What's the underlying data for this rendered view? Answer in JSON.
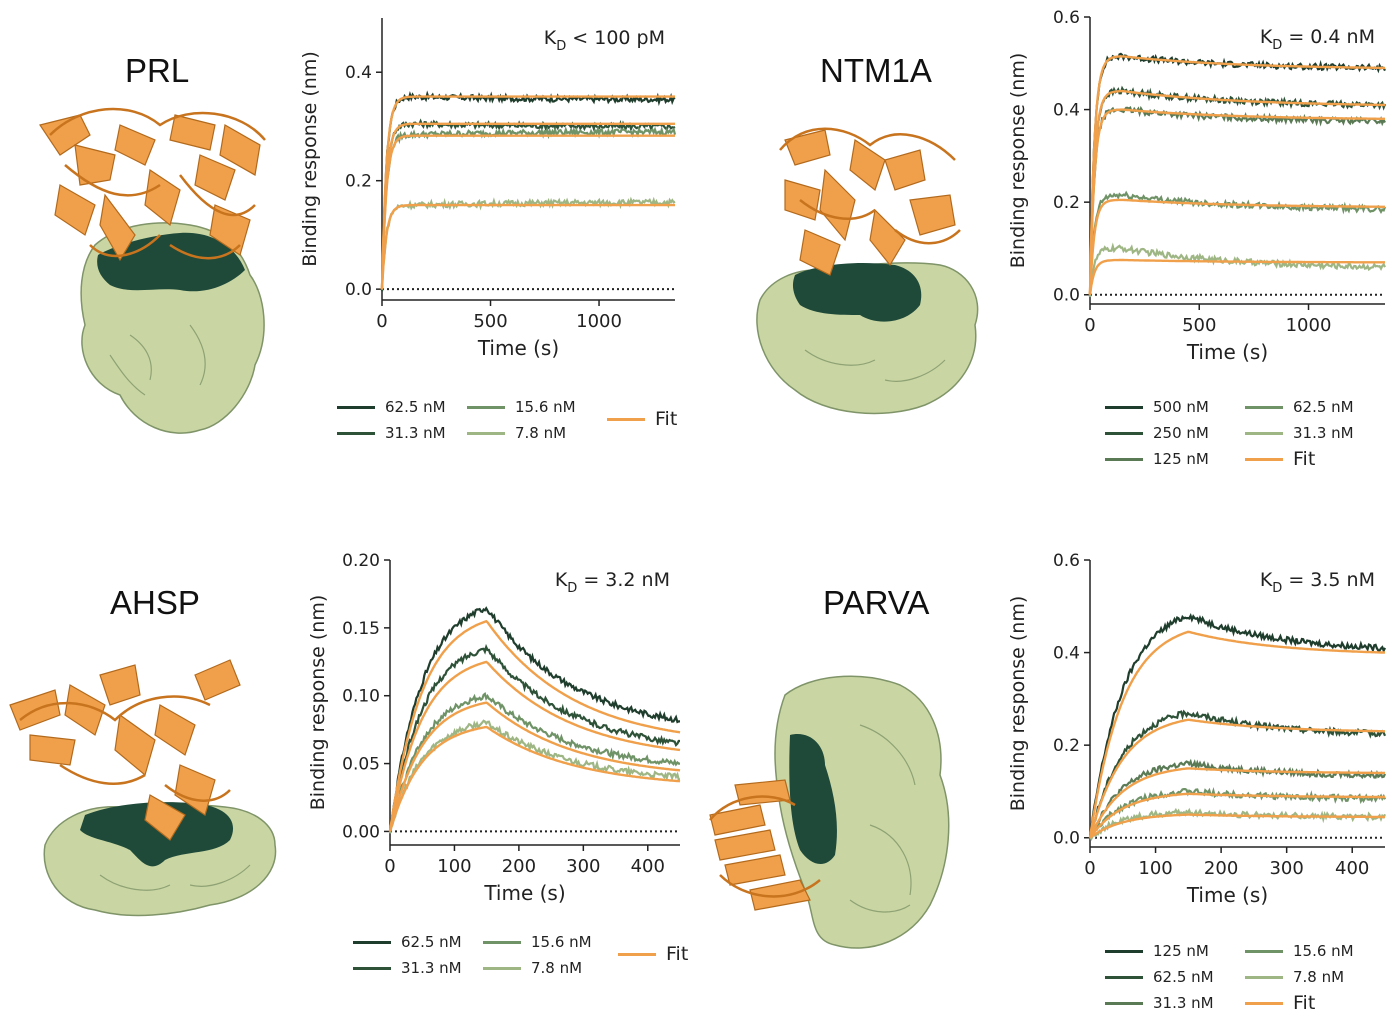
{
  "colors": {
    "c1": "#1f3d2c",
    "c2": "#2e5238",
    "c3": "#5a7a55",
    "c4": "#6f9367",
    "c5": "#9db684",
    "fit": "#f0a04b",
    "protein_green": "#c9d6a3",
    "epitope_dark": "#1f4a3a",
    "nanobody_orange": "#f0a04b"
  },
  "panels": [
    {
      "protein": "PRL",
      "kd_main": "K",
      "kd_sub": "D",
      "kd_rest": " < 100 pM",
      "legend": [
        "62.5 nM",
        "31.3 nM",
        "15.6 nM",
        "7.8 nM",
        "Fit"
      ]
    },
    {
      "protein": "NTM1A",
      "kd_main": "K",
      "kd_sub": "D",
      "kd_rest": " = 0.4 nM",
      "legend": [
        "500 nM",
        "250 nM",
        "125 nM",
        "62.5 nM",
        "31.3 nM",
        "Fit"
      ]
    },
    {
      "protein": "AHSP",
      "kd_main": "K",
      "kd_sub": "D",
      "kd_rest": " = 3.2 nM",
      "legend": [
        "62.5 nM",
        "31.3 nM",
        "15.6 nM",
        "7.8 nM",
        "Fit"
      ]
    },
    {
      "protein": "PARVA",
      "kd_main": "K",
      "kd_sub": "D",
      "kd_rest": " = 3.5 nM",
      "legend": [
        "125 nM",
        "62.5 nM",
        "31.3 nM",
        "15.6 nM",
        "7.8 nM",
        "Fit"
      ]
    }
  ],
  "chart_data": [
    {
      "type": "line",
      "title": "",
      "xlabel": "Time (s)",
      "ylabel": "Binding response (nm)",
      "xlim": [
        0,
        1350
      ],
      "ylim": [
        -0.02,
        0.5
      ],
      "xticks": [
        "0",
        "500",
        "1000"
      ],
      "xtick_values": [
        0,
        500,
        1000
      ],
      "yticks": [
        "0.0",
        "0.2",
        "0.4"
      ],
      "ytick_values": [
        0,
        0.2,
        0.4
      ],
      "annotation": "K_D < 100 pM",
      "association_end": 150,
      "series": [
        {
          "name": "62.5 nM",
          "plateau": 0.355,
          "end": 0.35,
          "color": "#1f3d2c"
        },
        {
          "name": "31.3 nM",
          "plateau": 0.305,
          "end": 0.3,
          "color": "#2e5238"
        },
        {
          "name": "15.6 nM",
          "plateau": 0.285,
          "end": 0.29,
          "color": "#6f9367"
        },
        {
          "name": "7.8 nM",
          "plateau": 0.155,
          "end": 0.16,
          "color": "#9db684"
        }
      ],
      "fit_series": [
        {
          "plateau": 0.355,
          "end": 0.355
        },
        {
          "plateau": 0.305,
          "end": 0.305
        },
        {
          "plateau": 0.283,
          "end": 0.283
        },
        {
          "plateau": 0.155,
          "end": 0.155
        }
      ]
    },
    {
      "type": "line",
      "title": "",
      "xlabel": "Time (s)",
      "ylabel": "Binding response (nm)",
      "xlim": [
        0,
        1350
      ],
      "ylim": [
        -0.02,
        0.6
      ],
      "xticks": [
        "0",
        "500",
        "1000"
      ],
      "xtick_values": [
        0,
        500,
        1000
      ],
      "yticks": [
        "0.0",
        "0.2",
        "0.4",
        "0.6"
      ],
      "ytick_values": [
        0,
        0.2,
        0.4,
        0.6
      ],
      "annotation": "K_D = 0.4 nM",
      "association_end": 150,
      "series": [
        {
          "name": "500 nM",
          "plateau": 0.515,
          "end": 0.49,
          "color": "#1f3d2c"
        },
        {
          "name": "250 nM",
          "plateau": 0.44,
          "end": 0.41,
          "color": "#2e5238"
        },
        {
          "name": "125 nM",
          "plateau": 0.4,
          "end": 0.375,
          "color": "#5a7a55"
        },
        {
          "name": "62.5 nM",
          "plateau": 0.215,
          "end": 0.185,
          "color": "#6f9367"
        },
        {
          "name": "31.3 nM",
          "plateau": 0.1,
          "end": 0.06,
          "color": "#9db684"
        }
      ],
      "fit_series": [
        {
          "plateau": 0.515,
          "end": 0.49
        },
        {
          "plateau": 0.44,
          "end": 0.41
        },
        {
          "plateau": 0.4,
          "end": 0.38
        },
        {
          "plateau": 0.205,
          "end": 0.19
        },
        {
          "plateau": 0.075,
          "end": 0.07
        }
      ]
    },
    {
      "type": "line",
      "title": "",
      "xlabel": "Time (s)",
      "ylabel": "Binding response (nm)",
      "xlim": [
        0,
        450
      ],
      "ylim": [
        -0.01,
        0.2
      ],
      "xticks": [
        "0",
        "100",
        "200",
        "300",
        "400"
      ],
      "xtick_values": [
        0,
        100,
        200,
        300,
        400
      ],
      "yticks": [
        "0.00",
        "0.05",
        "0.10",
        "0.15",
        "0.20"
      ],
      "ytick_values": [
        0,
        0.05,
        0.1,
        0.15,
        0.2
      ],
      "annotation": "K_D = 3.2 nM",
      "association_end": 150,
      "series": [
        {
          "name": "62.5 nM",
          "plateau": 0.165,
          "end": 0.082,
          "color": "#1f3d2c"
        },
        {
          "name": "31.3 nM",
          "plateau": 0.135,
          "end": 0.065,
          "color": "#2e5238"
        },
        {
          "name": "15.6 nM",
          "plateau": 0.1,
          "end": 0.05,
          "color": "#6f9367"
        },
        {
          "name": "7.8 nM",
          "plateau": 0.08,
          "end": 0.04,
          "color": "#9db684"
        }
      ],
      "fit_series": [
        {
          "plateau": 0.155,
          "end": 0.073
        },
        {
          "plateau": 0.125,
          "end": 0.06
        },
        {
          "plateau": 0.095,
          "end": 0.045
        },
        {
          "plateau": 0.077,
          "end": 0.037
        }
      ]
    },
    {
      "type": "line",
      "title": "",
      "xlabel": "Time (s)",
      "ylabel": "Binding response (nm)",
      "xlim": [
        0,
        450
      ],
      "ylim": [
        -0.02,
        0.6
      ],
      "xticks": [
        "0",
        "100",
        "200",
        "300",
        "400"
      ],
      "xtick_values": [
        0,
        100,
        200,
        300,
        400
      ],
      "yticks": [
        "0.0",
        "0.2",
        "0.4",
        "0.6"
      ],
      "ytick_values": [
        0,
        0.2,
        0.4,
        0.6
      ],
      "annotation": "K_D = 3.5 nM",
      "association_end": 150,
      "series": [
        {
          "name": "125 nM",
          "plateau": 0.48,
          "end": 0.41,
          "color": "#1f3d2c"
        },
        {
          "name": "62.5 nM",
          "plateau": 0.27,
          "end": 0.225,
          "color": "#2e5238"
        },
        {
          "name": "31.3 nM",
          "plateau": 0.16,
          "end": 0.135,
          "color": "#5a7a55"
        },
        {
          "name": "15.6 nM",
          "plateau": 0.1,
          "end": 0.085,
          "color": "#6f9367"
        },
        {
          "name": "7.8 nM",
          "plateau": 0.055,
          "end": 0.045,
          "color": "#9db684"
        }
      ],
      "fit_series": [
        {
          "plateau": 0.445,
          "end": 0.4
        },
        {
          "plateau": 0.255,
          "end": 0.23
        },
        {
          "plateau": 0.15,
          "end": 0.14
        },
        {
          "plateau": 0.095,
          "end": 0.088
        },
        {
          "plateau": 0.05,
          "end": 0.045
        }
      ]
    }
  ]
}
